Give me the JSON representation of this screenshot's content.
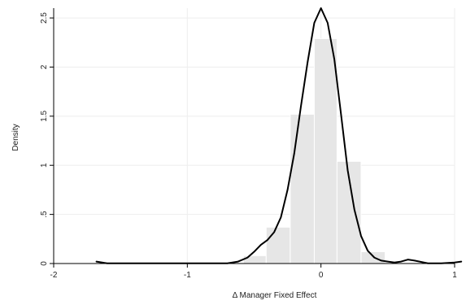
{
  "chart_data": {
    "type": "bar",
    "title": "",
    "xlabel": "Δ Manager Fixed Effect",
    "ylabel": "Density",
    "xlim": [
      -2,
      1
    ],
    "ylim": [
      0,
      2.6
    ],
    "x_ticks": [
      {
        "value": -2,
        "label": "-2"
      },
      {
        "value": -1,
        "label": "-1"
      },
      {
        "value": 0,
        "label": "0"
      },
      {
        "value": 1,
        "label": "1"
      }
    ],
    "y_ticks": [
      {
        "value": 0,
        "label": "0"
      },
      {
        "value": 0.5,
        "label": ".5"
      },
      {
        "value": 1,
        "label": "1"
      },
      {
        "value": 1.5,
        "label": "1.5"
      },
      {
        "value": 2,
        "label": "2"
      },
      {
        "value": 2.5,
        "label": "2.5"
      }
    ],
    "grid": {
      "horizontal": true,
      "vertical": true
    },
    "legend": "none",
    "histogram": {
      "bin_edges": [
        -0.58,
        -0.41,
        -0.23,
        -0.05,
        0.12,
        0.3,
        0.48
      ],
      "densities": [
        0.08,
        0.37,
        1.52,
        2.29,
        1.04,
        0.12
      ]
    },
    "kde": {
      "x": [
        -1.68,
        -1.6,
        -1.4,
        -1.2,
        -1.0,
        -0.8,
        -0.7,
        -0.62,
        -0.55,
        -0.5,
        -0.45,
        -0.4,
        -0.35,
        -0.3,
        -0.25,
        -0.2,
        -0.15,
        -0.1,
        -0.05,
        0.0,
        0.05,
        0.1,
        0.15,
        0.2,
        0.25,
        0.3,
        0.35,
        0.4,
        0.45,
        0.5,
        0.55,
        0.6,
        0.65,
        0.7,
        0.8,
        0.9,
        1.0,
        1.05
      ],
      "y": [
        0.02,
        0.0,
        0.0,
        0.0,
        0.0,
        0.0,
        0.0,
        0.02,
        0.06,
        0.12,
        0.19,
        0.24,
        0.32,
        0.47,
        0.75,
        1.12,
        1.6,
        2.05,
        2.45,
        2.6,
        2.45,
        2.08,
        1.52,
        0.95,
        0.55,
        0.28,
        0.13,
        0.06,
        0.03,
        0.02,
        0.01,
        0.02,
        0.04,
        0.03,
        0.0,
        0.0,
        0.01,
        0.02
      ]
    },
    "colors": {
      "bar_fill": "#e6e6e6",
      "bar_stroke": "#ffffff",
      "line": "#000000",
      "grid": "#eeeeee",
      "axis": "#000000"
    }
  }
}
